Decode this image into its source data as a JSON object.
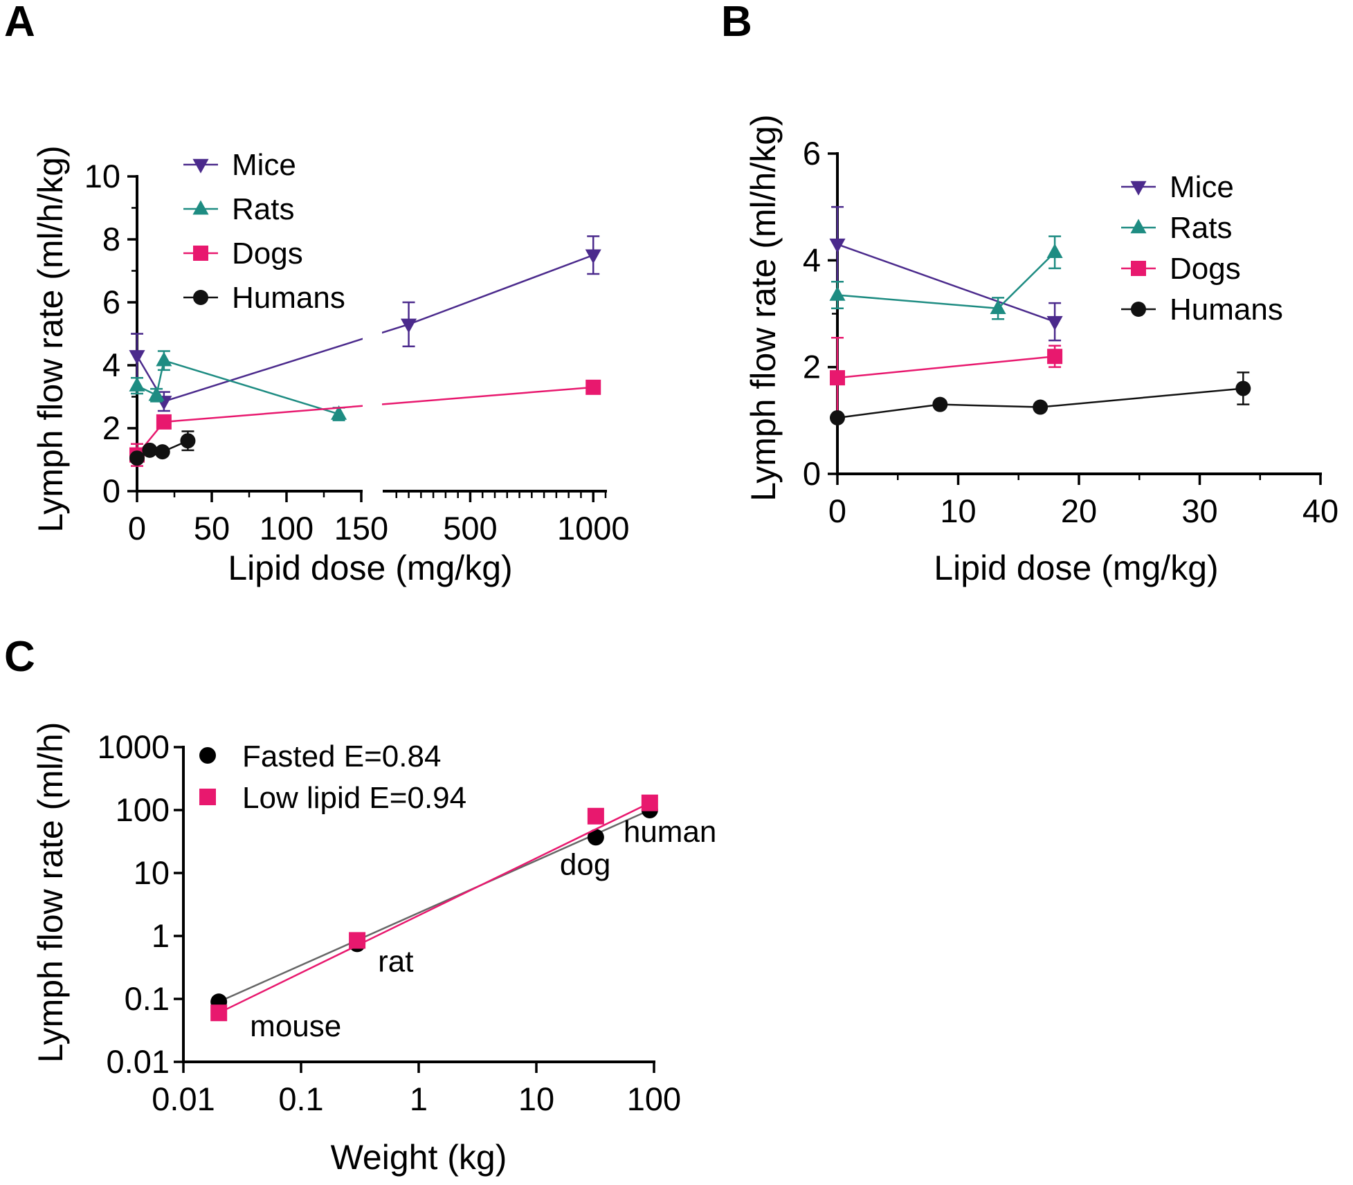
{
  "panels": {
    "A": {
      "letter": "A"
    },
    "B": {
      "letter": "B"
    },
    "C": {
      "letter": "C"
    }
  },
  "colors": {
    "mice": "#4b2a8c",
    "rats": "#1e8c82",
    "dogs": "#e8186e",
    "humans": "#111111"
  },
  "chart_data": [
    {
      "id": "A",
      "type": "line",
      "title": "",
      "xlabel": "Lipid dose (mg/kg)",
      "ylabel": "Lymph flow rate (ml/h/kg)",
      "x_axis": "broken",
      "x_segments": [
        {
          "range": [
            0,
            150
          ],
          "ticks": [
            "0",
            "50",
            "100",
            "150"
          ],
          "tick_values": [
            0,
            50,
            100,
            150
          ]
        },
        {
          "range": [
            150,
            1050
          ],
          "ticks": [
            "500",
            "1000"
          ],
          "tick_values": [
            500,
            1000
          ]
        }
      ],
      "ylim": [
        0,
        10
      ],
      "yticks": [
        "0",
        "2",
        "4",
        "6",
        "8",
        "10"
      ],
      "legend": [
        "Mice",
        "Rats",
        "Dogs",
        "Humans"
      ],
      "legend_position": "top-left",
      "series": [
        {
          "name": "Mice",
          "marker": "triangle-down",
          "x": [
            0,
            18,
            250,
            1000
          ],
          "y": [
            4.3,
            2.85,
            5.3,
            7.5
          ],
          "err": [
            0.7,
            0.3,
            0.7,
            0.6
          ]
        },
        {
          "name": "Rats",
          "marker": "triangle-up",
          "x": [
            0,
            13,
            18,
            135
          ],
          "y": [
            3.35,
            3.05,
            4.15,
            2.45
          ],
          "err": [
            0.25,
            0.2,
            0.3,
            0.2
          ]
        },
        {
          "name": "Dogs",
          "marker": "square",
          "x": [
            0,
            18,
            1000
          ],
          "y": [
            1.15,
            2.2,
            3.3
          ],
          "err": [
            0.35,
            0.2,
            0.1
          ]
        },
        {
          "name": "Humans",
          "marker": "circle",
          "x": [
            0,
            8.5,
            17,
            34
          ],
          "y": [
            1.05,
            1.3,
            1.25,
            1.6
          ],
          "err": [
            0.1,
            0.05,
            0.05,
            0.3
          ]
        }
      ]
    },
    {
      "id": "B",
      "type": "line",
      "title": "",
      "xlabel": "Lipid dose (mg/kg)",
      "ylabel": "Lymph flow rate (ml/h/kg)",
      "xlim": [
        0,
        40
      ],
      "xticks": [
        "0",
        "10",
        "20",
        "30",
        "40"
      ],
      "ylim": [
        0,
        6
      ],
      "yticks": [
        "0",
        "2",
        "4",
        "6"
      ],
      "legend": [
        "Mice",
        "Rats",
        "Dogs",
        "Humans"
      ],
      "legend_position": "top-right",
      "series": [
        {
          "name": "Mice",
          "marker": "triangle-down",
          "x": [
            0,
            18
          ],
          "y": [
            4.3,
            2.85
          ],
          "err": [
            0.7,
            0.35
          ]
        },
        {
          "name": "Rats",
          "marker": "triangle-up",
          "x": [
            0,
            13.3,
            18
          ],
          "y": [
            3.35,
            3.1,
            4.15
          ],
          "err": [
            0.25,
            0.2,
            0.3
          ]
        },
        {
          "name": "Dogs",
          "marker": "square",
          "x": [
            0,
            18
          ],
          "y": [
            1.8,
            2.2
          ],
          "err": [
            0.75,
            0.2
          ]
        },
        {
          "name": "Humans",
          "marker": "circle",
          "x": [
            0,
            8.5,
            16.8,
            33.6
          ],
          "y": [
            1.05,
            1.3,
            1.25,
            1.6
          ],
          "err": [
            0.05,
            0.05,
            0.05,
            0.3
          ]
        }
      ]
    },
    {
      "id": "C",
      "type": "scatter",
      "title": "",
      "xlabel": "Weight (kg)",
      "ylabel": "Lymph flow rate (ml/h)",
      "xscale": "log",
      "yscale": "log",
      "xlim": [
        0.01,
        100
      ],
      "xticks": [
        "0.01",
        "0.1",
        "1",
        "10",
        "100"
      ],
      "ylim": [
        0.01,
        1000
      ],
      "yticks": [
        "0.01",
        "0.1",
        "1",
        "10",
        "100",
        "1000"
      ],
      "legend": [
        "Fasted E=0.84",
        "Low lipid E=0.94"
      ],
      "legend_position": "top-left",
      "point_labels": [
        "mouse",
        "rat",
        "dog",
        "human"
      ],
      "series": [
        {
          "name": "Fasted E=0.84",
          "marker": "circle",
          "x": [
            0.02,
            0.3,
            32,
            92
          ],
          "y": [
            0.09,
            0.75,
            37,
            100
          ]
        },
        {
          "name": "Low lipid E=0.94",
          "marker": "square",
          "x": [
            0.02,
            0.3,
            32,
            92
          ],
          "y": [
            0.06,
            0.85,
            80,
            130
          ]
        }
      ]
    }
  ]
}
